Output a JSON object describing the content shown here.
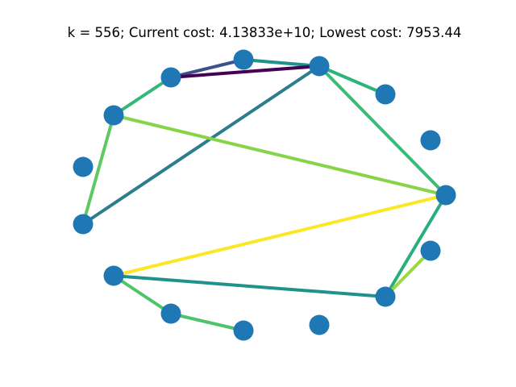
{
  "header": {
    "title": "k = 556; Current cost: 4.13833e+10; Lowest cost: 7953.44"
  },
  "graph": {
    "node_color": "#1f77b4",
    "nodes": [
      {
        "id": "n0"
      },
      {
        "id": "n1"
      },
      {
        "id": "n2"
      },
      {
        "id": "n3"
      },
      {
        "id": "n4"
      },
      {
        "id": "n5"
      },
      {
        "id": "n6"
      },
      {
        "id": "n7"
      },
      {
        "id": "n8"
      },
      {
        "id": "n9"
      },
      {
        "id": "n10"
      },
      {
        "id": "n11"
      },
      {
        "id": "n12"
      },
      {
        "id": "n13"
      },
      {
        "id": "n14"
      }
    ],
    "edges": [
      {
        "from": "n1",
        "to": "n2",
        "color": "#22908c"
      },
      {
        "from": "n1",
        "to": "n14",
        "color": "#3c5189"
      },
      {
        "from": "n2",
        "to": "n14",
        "color": "#440154"
      },
      {
        "from": "n2",
        "to": "n3",
        "color": "#2eb37c"
      },
      {
        "from": "n2",
        "to": "n5",
        "color": "#3bbb75"
      },
      {
        "from": "n2",
        "to": "n10",
        "color": "#2c7d8e"
      },
      {
        "from": "n14",
        "to": "n13",
        "color": "#35b779"
      },
      {
        "from": "n13",
        "to": "n10",
        "color": "#5ec962"
      },
      {
        "from": "n13",
        "to": "n5",
        "color": "#86d549"
      },
      {
        "from": "n5",
        "to": "n9",
        "color": "#fde725"
      },
      {
        "from": "n5",
        "to": "n7",
        "color": "#29af7f"
      },
      {
        "from": "n6",
        "to": "n7",
        "color": "#9bd93c"
      },
      {
        "from": "n9",
        "to": "n7",
        "color": "#21918c"
      },
      {
        "from": "n9",
        "to": "n8",
        "color": "#50c46a"
      },
      {
        "from": "n8",
        "to": "n0",
        "color": "#4ec36b"
      }
    ]
  }
}
